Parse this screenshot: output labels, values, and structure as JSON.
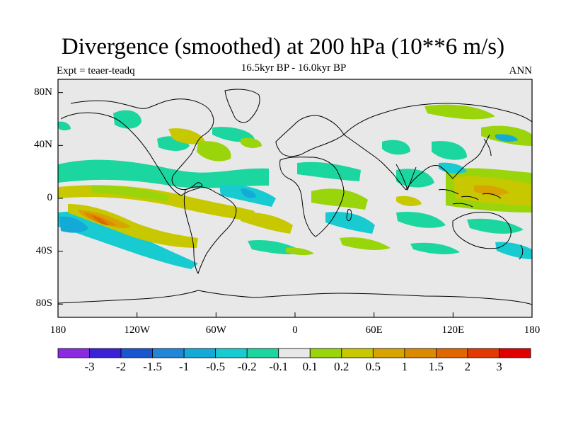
{
  "plot": {
    "title": "Divergence (smoothed) at 200 hPa (10**6 m/s)",
    "subtitle": "16.5kyr BP - 16.0kyr BP",
    "left_label": "Expt = teaer-teadq",
    "right_label": "ANN"
  },
  "axes": {
    "lat_ticks": [
      {
        "label": "80N",
        "value": 80
      },
      {
        "label": "40N",
        "value": 40
      },
      {
        "label": "0",
        "value": 0
      },
      {
        "label": "40S",
        "value": -40
      },
      {
        "label": "80S",
        "value": -80
      }
    ],
    "lon_ticks": [
      {
        "label": "180",
        "value": -180
      },
      {
        "label": "120W",
        "value": -120
      },
      {
        "label": "60W",
        "value": -60
      },
      {
        "label": "0",
        "value": 0
      },
      {
        "label": "60E",
        "value": 60
      },
      {
        "label": "120E",
        "value": 120
      },
      {
        "label": "180",
        "value": 180
      }
    ]
  },
  "colorbar": {
    "colors": [
      "#8a2be2",
      "#3b22d6",
      "#1a55d0",
      "#1f86d8",
      "#14aad8",
      "#18cbd0",
      "#1cd6a0",
      "#e8e8e8",
      "#9ad40a",
      "#c8c800",
      "#d8a400",
      "#dc8a00",
      "#e06600",
      "#e23a00",
      "#e00000"
    ],
    "labels": [
      "-3",
      "-2",
      "-1.5",
      "-1",
      "-0.5",
      "-0.2",
      "-0.1",
      "0.1",
      "0.2",
      "0.5",
      "1",
      "1.5",
      "2",
      "3"
    ]
  },
  "field_colors": {
    "background": "#e8e8e8",
    "coast": "#000000"
  }
}
